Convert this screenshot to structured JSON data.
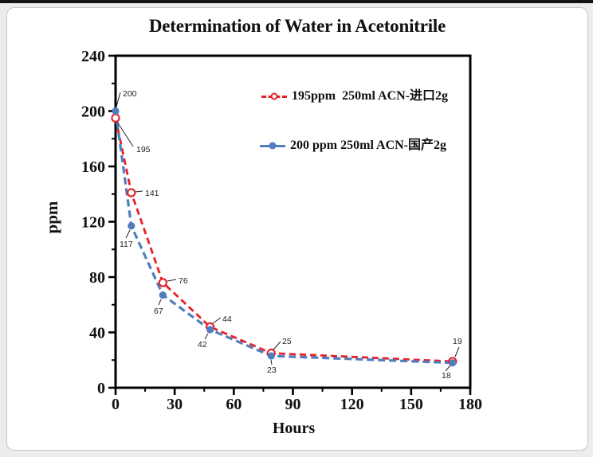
{
  "window": {
    "top_strip_color": "#141414",
    "card_border_color": "#c8c8c8",
    "page_background": "#ececec"
  },
  "chart_data": {
    "type": "line",
    "title": "Determination of Water in Acetonitrile",
    "xlabel": "Hours",
    "ylabel": "ppm",
    "xlim": [
      0,
      180
    ],
    "ylim": [
      0,
      240
    ],
    "x_major_ticks": [
      0,
      30,
      60,
      90,
      120,
      150,
      180
    ],
    "x_minor_ticks": [
      15,
      45,
      75,
      105,
      135,
      165
    ],
    "y_major_ticks": [
      0,
      40,
      80,
      120,
      160,
      200,
      240
    ],
    "y_minor_ticks": [
      20,
      60,
      100,
      140,
      180,
      220
    ],
    "grid": false,
    "legend_position": "inside upper center",
    "x": [
      0,
      8,
      24,
      48,
      79,
      171
    ],
    "series": [
      {
        "name": "195ppm  250ml ACN-进口2g",
        "color": "#e82028",
        "line_style": "dashed",
        "marker": "open-circle",
        "values": [
          195,
          141,
          76,
          44,
          25,
          19
        ],
        "point_labels": [
          "195",
          "141",
          "76",
          "44",
          "25",
          "19"
        ]
      },
      {
        "name": "200 ppm 250ml ACN-国产2g",
        "color": "#4f7dbe",
        "line_style": "dashed",
        "marker": "filled-circle",
        "values": [
          200,
          117,
          67,
          42,
          23,
          18
        ],
        "point_labels": [
          "200",
          "117",
          "67",
          "42",
          "23",
          "18"
        ]
      }
    ],
    "axis_color": "#000000",
    "annotation_color": "#222222"
  }
}
